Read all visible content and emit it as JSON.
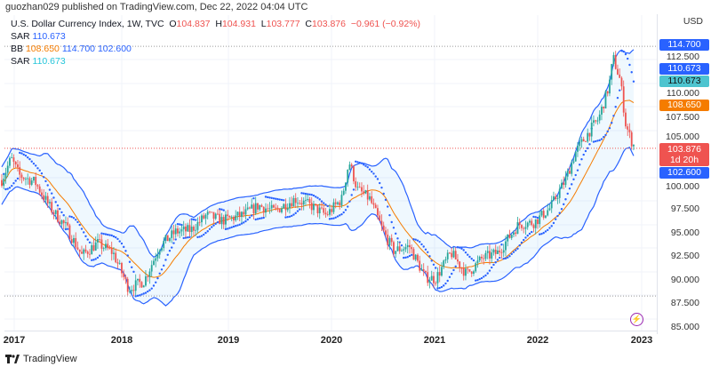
{
  "header": {
    "published": "guozhan029 published on TradingView.com, Dec 22, 2022 04:04 UTC"
  },
  "legend": {
    "symbol": "U.S. Dollar Currency Index, 1W, TVC",
    "o_label": "O",
    "open": "104.837",
    "h_label": "H",
    "high": "104.931",
    "l_label": "L",
    "low": "103.777",
    "c_label": "C",
    "close": "103.876",
    "change": "−0.961 (−0.92%)",
    "sar1_label": "SAR",
    "sar1": "110.673",
    "bb_label": "BB",
    "bb_basis": "108.650",
    "bb_upper": "114.700",
    "bb_lower": "102.600",
    "sar2_label": "SAR",
    "sar2": "110.673"
  },
  "axis": {
    "currency": "USD",
    "ticks": [
      "112.500",
      "110.000",
      "107.500",
      "105.000",
      "100.000",
      "97.500",
      "95.000",
      "92.500",
      "90.000",
      "87.500",
      "85.000"
    ],
    "tags": {
      "bb_upper": "114.700",
      "sar1": "110.673",
      "sar2": "110.673",
      "bb_basis": "108.650",
      "close": "103.876",
      "countdown": "1d 20h",
      "bb_lower": "102.600"
    }
  },
  "xaxis": [
    "2017",
    "2018",
    "2019",
    "2020",
    "2021",
    "2022",
    "2023"
  ],
  "colors": {
    "up": "#26a69a",
    "down": "#ef5350",
    "bb": "#2962ff",
    "basis": "#f57c00",
    "sar": "#2962ff",
    "sar2": "#26c6da"
  },
  "brand": "TradingView",
  "chart_data": {
    "type": "candlestick",
    "interval": "1W",
    "price_path": [
      [
        2016.88,
        100.5
      ],
      [
        2016.97,
        102.8
      ],
      [
        2017.05,
        101
      ],
      [
        2017.2,
        100.3
      ],
      [
        2017.35,
        97.5
      ],
      [
        2017.5,
        95.5
      ],
      [
        2017.65,
        92.5
      ],
      [
        2017.8,
        93.8
      ],
      [
        2017.95,
        92.8
      ],
      [
        2018.1,
        89
      ],
      [
        2018.25,
        89.8
      ],
      [
        2018.4,
        93.5
      ],
      [
        2018.55,
        95
      ],
      [
        2018.7,
        95.2
      ],
      [
        2018.85,
        96.8
      ],
      [
        2019.0,
        96.2
      ],
      [
        2019.2,
        96.8
      ],
      [
        2019.35,
        97.8
      ],
      [
        2019.5,
        97.2
      ],
      [
        2019.7,
        98.5
      ],
      [
        2019.85,
        97.8
      ],
      [
        2020.0,
        96.8
      ],
      [
        2020.15,
        98.5
      ],
      [
        2020.22,
        102.5
      ],
      [
        2020.3,
        99.5
      ],
      [
        2020.42,
        98.5
      ],
      [
        2020.55,
        95
      ],
      [
        2020.65,
        93
      ],
      [
        2020.8,
        93.5
      ],
      [
        2020.95,
        90.2
      ],
      [
        2021.05,
        90
      ],
      [
        2021.2,
        92.8
      ],
      [
        2021.35,
        90.5
      ],
      [
        2021.5,
        92.2
      ],
      [
        2021.65,
        92.8
      ],
      [
        2021.85,
        95.8
      ],
      [
        2022.0,
        96
      ],
      [
        2022.15,
        97.5
      ],
      [
        2022.3,
        100.5
      ],
      [
        2022.4,
        103.5
      ],
      [
        2022.55,
        106
      ],
      [
        2022.62,
        107
      ],
      [
        2022.72,
        110.5
      ],
      [
        2022.76,
        113.5
      ],
      [
        2022.83,
        111
      ],
      [
        2022.88,
        106.5
      ],
      [
        2022.93,
        104.8
      ],
      [
        2022.97,
        103.9
      ]
    ],
    "ylim": [
      85,
      116
    ]
  }
}
